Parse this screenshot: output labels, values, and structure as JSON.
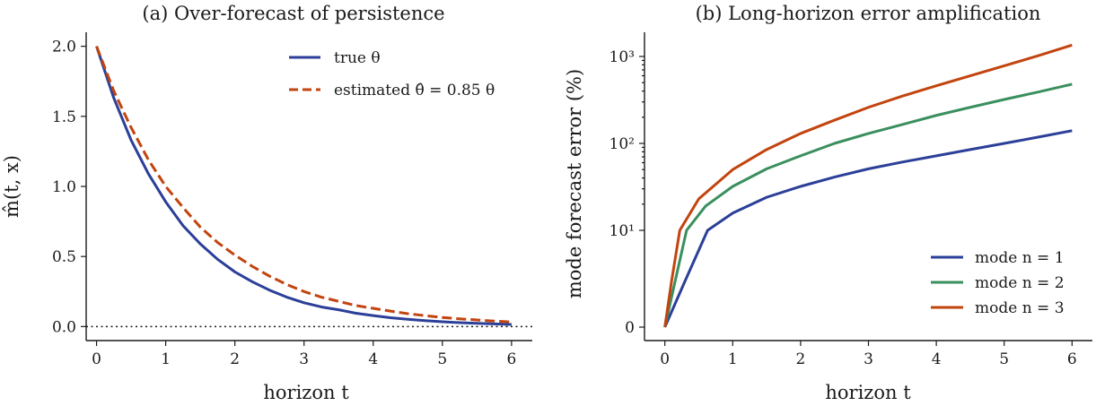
{
  "colors": {
    "blue": "#2b3f98",
    "green": "#3a8f5e",
    "orange": "#c2440f",
    "dark": "#1a1a1a"
  },
  "chart_data": [
    {
      "type": "line",
      "title": "(a) Over-forecast of persistence",
      "xlabel": "horizon t",
      "ylabel": "m̂(t, x)",
      "xlim": [
        -0.15,
        6.3
      ],
      "ylim": [
        -0.1,
        2.1
      ],
      "xticks": [
        "0",
        "1",
        "2",
        "3",
        "4",
        "5",
        "6"
      ],
      "yticks": [
        "0.0",
        "0.5",
        "1.0",
        "1.5",
        "2.0"
      ],
      "reference_line": {
        "y": 0,
        "style": "dotted"
      },
      "grid": false,
      "legend_position": "top-right",
      "series": [
        {
          "name": "true θ",
          "color": "#2b3f98",
          "style": "solid",
          "x": [
            0,
            0.25,
            0.5,
            0.75,
            1,
            1.25,
            1.5,
            1.75,
            2,
            2.25,
            2.5,
            2.75,
            3,
            3.25,
            3.5,
            3.75,
            4,
            4.25,
            4.5,
            4.75,
            5,
            5.25,
            5.5,
            5.75,
            6
          ],
          "y": [
            2.0,
            1.63,
            1.33,
            1.09,
            0.89,
            0.72,
            0.59,
            0.48,
            0.39,
            0.32,
            0.26,
            0.21,
            0.17,
            0.14,
            0.12,
            0.095,
            0.078,
            0.063,
            0.052,
            0.042,
            0.034,
            0.028,
            0.023,
            0.019,
            0.015
          ]
        },
        {
          "name": "estimated θ̂ = 0.85 θ",
          "color": "#c2440f",
          "style": "dashed",
          "x": [
            0,
            0.25,
            0.5,
            0.75,
            1,
            1.25,
            1.5,
            1.75,
            2,
            2.25,
            2.5,
            2.75,
            3,
            3.25,
            3.5,
            3.75,
            4,
            4.25,
            4.5,
            4.75,
            5,
            5.25,
            5.5,
            5.75,
            6
          ],
          "y": [
            2.0,
            1.68,
            1.42,
            1.19,
            1.0,
            0.85,
            0.71,
            0.6,
            0.51,
            0.43,
            0.36,
            0.3,
            0.25,
            0.21,
            0.18,
            0.15,
            0.13,
            0.11,
            0.092,
            0.078,
            0.065,
            0.055,
            0.047,
            0.039,
            0.033
          ]
        }
      ]
    },
    {
      "type": "line",
      "title": "(b) Long-horizon error amplification",
      "xlabel": "horizon t",
      "ylabel": "mode forecast error (%)",
      "scale_y": "symlog",
      "xlim": [
        -0.3,
        6.3
      ],
      "xticks": [
        "0",
        "1",
        "2",
        "3",
        "4",
        "5",
        "6"
      ],
      "yticks": [
        "0",
        "10¹",
        "10²",
        "10³"
      ],
      "grid": false,
      "legend_position": "bottom-right",
      "series": [
        {
          "name": "mode n = 1",
          "color": "#2b3f98",
          "x": [
            0,
            0.3,
            0.63,
            1,
            1.5,
            2,
            2.5,
            3,
            3.5,
            4,
            4.5,
            5,
            5.5,
            6
          ],
          "y": [
            0,
            4.8,
            10,
            15.8,
            24,
            32,
            41,
            51,
            61,
            72,
            85,
            100,
            118,
            140
          ]
        },
        {
          "name": "mode n = 2",
          "color": "#3a8f5e",
          "x": [
            0,
            0.15,
            0.32,
            0.6,
            1,
            1.5,
            2,
            2.5,
            3,
            3.5,
            4,
            4.5,
            5,
            5.5,
            6
          ],
          "y": [
            0,
            4.7,
            10,
            19,
            32,
            51,
            72,
            100,
            130,
            165,
            210,
            260,
            320,
            390,
            480
          ]
        },
        {
          "name": "mode n = 3",
          "color": "#c2440f",
          "x": [
            0,
            0.1,
            0.22,
            0.5,
            1,
            1.5,
            2,
            2.5,
            3,
            3.5,
            4,
            4.5,
            5,
            5.5,
            6
          ],
          "y": [
            0,
            4.8,
            10,
            23,
            50,
            85,
            130,
            185,
            260,
            350,
            460,
            600,
            780,
            1020,
            1350
          ]
        }
      ]
    }
  ]
}
